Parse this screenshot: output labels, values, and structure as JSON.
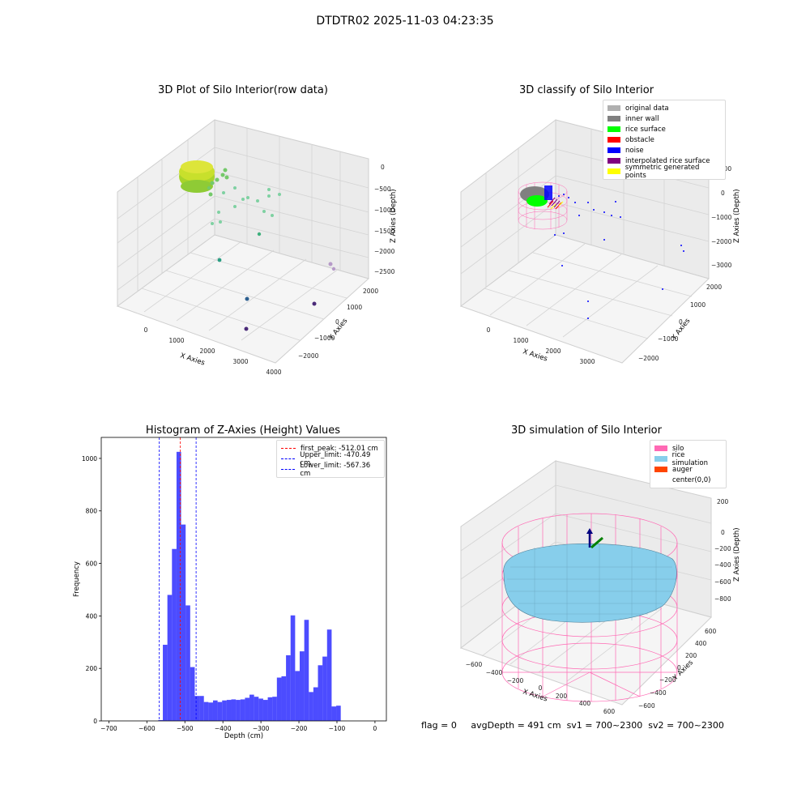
{
  "title": "DTDTR02 2025-11-03 04:23:35",
  "panels": {
    "raw": {
      "title": "3D Plot of Silo Interior(row data)",
      "xlabel": "X Axies",
      "ylabel": "Y Axies",
      "zlabel": "Z Axies (Depth)",
      "xticks": [
        "0",
        "1000",
        "2000",
        "3000",
        "4000"
      ],
      "yticks": [
        "2000",
        "1000",
        "0",
        "−1000",
        "−2000"
      ],
      "zticks": [
        "0",
        "−500",
        "−1000",
        "−1500",
        "−2000",
        "−2500"
      ]
    },
    "classify": {
      "title": "3D classify of Silo Interior",
      "xlabel": "X Axies",
      "ylabel": "Y Axies",
      "zlabel": "Z Axies (Depth)",
      "xticks": [
        "0",
        "1000",
        "2000",
        "3000"
      ],
      "yticks": [
        "2000",
        "1000",
        "0",
        "−1000",
        "−2000"
      ],
      "zticks": [
        "1000",
        "0",
        "−1000",
        "−2000",
        "−3000"
      ],
      "legend": [
        {
          "label": "original data",
          "color": "#b0b0b0"
        },
        {
          "label": "inner wall",
          "color": "#808080"
        },
        {
          "label": "rice surface",
          "color": "#00ff00"
        },
        {
          "label": "obstacle",
          "color": "#ff0000"
        },
        {
          "label": "noise",
          "color": "#0000ff"
        },
        {
          "label": "interpolated rice surface",
          "color": "#800080"
        },
        {
          "label": "symmetric generated points",
          "color": "#ffff00"
        }
      ]
    },
    "simulation": {
      "title": "3D simulation of Silo Interior",
      "xlabel": "X Axies",
      "ylabel": "Y Axies",
      "zlabel": "Z Axies (Depth)",
      "xticks": [
        "−600",
        "−400",
        "−200",
        "0",
        "200",
        "400",
        "600"
      ],
      "yticks": [
        "600",
        "400",
        "200",
        "0",
        "−200",
        "−400",
        "−600"
      ],
      "zticks": [
        "200",
        "0",
        "−200",
        "−400",
        "−600",
        "−800"
      ],
      "legend": [
        {
          "label": "silo",
          "color": "#ff69b4"
        },
        {
          "label": "rice simulation",
          "color": "#87ceeb"
        },
        {
          "label": "auger",
          "color": "#ff4500"
        },
        {
          "label": "center(0,0)",
          "color": "#ffffff"
        }
      ]
    }
  },
  "chart_data": [
    {
      "type": "bar",
      "title": "Histogram of Z-Axies (Height) Values",
      "xlabel": "Depth (cm)",
      "ylabel": "Frequency",
      "xlim": [
        -720,
        30
      ],
      "ylim": [
        0,
        1080
      ],
      "xticks": [
        -700,
        -600,
        -500,
        -400,
        -300,
        -200,
        -100,
        0
      ],
      "yticks": [
        0,
        200,
        400,
        600,
        800,
        1000
      ],
      "bin_width": 12,
      "bin_starts": [
        -570,
        -558,
        -546,
        -534,
        -522,
        -510,
        -498,
        -486,
        -474,
        -462,
        -450,
        -438,
        -426,
        -414,
        -402,
        -390,
        -378,
        -366,
        -354,
        -342,
        -330,
        -318,
        -306,
        -294,
        -282,
        -270,
        -258,
        -246,
        -234,
        -222,
        -210,
        -198,
        -186,
        -174,
        -162,
        -150,
        -138,
        -126,
        -114,
        -102,
        -90,
        -78,
        -66,
        -54,
        -42,
        -30,
        -18,
        -6
      ],
      "values": [
        3,
        290,
        480,
        655,
        1025,
        748,
        440,
        205,
        95,
        95,
        72,
        70,
        78,
        72,
        78,
        80,
        82,
        80,
        82,
        88,
        100,
        92,
        85,
        80,
        90,
        92,
        165,
        170,
        250,
        402,
        190,
        265,
        385,
        110,
        128,
        212,
        245,
        348,
        55,
        58,
        0,
        0,
        0,
        0,
        0,
        0,
        0,
        0
      ],
      "bar_color": "#0000ff",
      "vlines": [
        {
          "label": "first_peak: -512.01 cm",
          "x": -512.01,
          "color": "#ff0000"
        },
        {
          "label": "Upper_limit: -470.49 cm",
          "x": -470.49,
          "color": "#0000ff"
        },
        {
          "label": "Lower_limit: -567.36 cm",
          "x": -567.36,
          "color": "#0000ff"
        }
      ],
      "legend_loc": "upper right"
    }
  ],
  "footer": {
    "flag": "flag = 0",
    "avg": "avgDepth = 491 cm",
    "sv1": "sv1 = 700~2300",
    "sv2": "sv2 = 700~2300"
  }
}
